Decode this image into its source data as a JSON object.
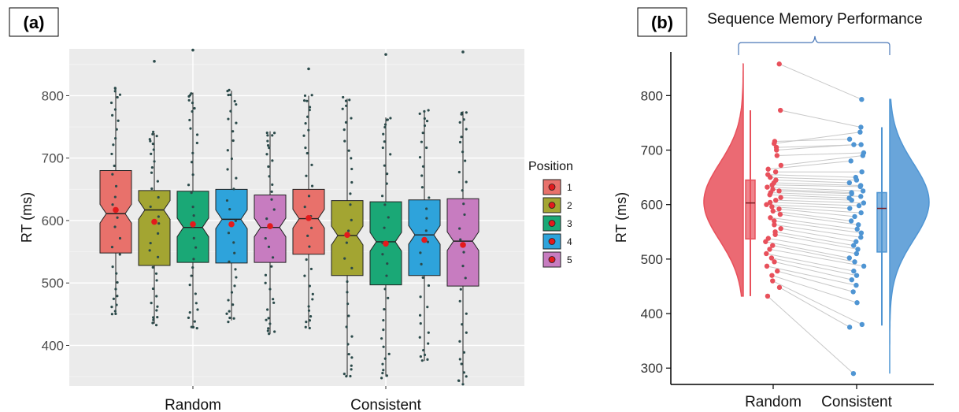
{
  "chart_data": [
    {
      "panel": "(a)",
      "type": "boxplot",
      "ylabel": "RT (ms)",
      "ylim": [
        335,
        875
      ],
      "yticks": [
        400,
        500,
        600,
        700,
        800
      ],
      "grid": true,
      "legend": {
        "title": "Position",
        "placement": "right",
        "entries": [
          "1",
          "2",
          "3",
          "4",
          "5"
        ]
      },
      "colors": [
        "#e8716b",
        "#a3a532",
        "#1aa876",
        "#2ea3db",
        "#c77cc0"
      ],
      "groups": [
        "Random",
        "Consistent"
      ],
      "series": [
        {
          "group": "Random",
          "position": "1",
          "q1": 548,
          "median": 611,
          "q3": 680,
          "whisker_low": 450,
          "whisker_high": 812,
          "mean": 617
        },
        {
          "group": "Random",
          "position": "2",
          "q1": 528,
          "median": 617,
          "q3": 648,
          "whisker_low": 435,
          "whisker_high": 740,
          "mean": 598
        },
        {
          "group": "Random",
          "position": "3",
          "q1": 533,
          "median": 589,
          "q3": 647,
          "whisker_low": 427,
          "whisker_high": 805,
          "mean": 594
        },
        {
          "group": "Random",
          "position": "4",
          "q1": 532,
          "median": 602,
          "q3": 650,
          "whisker_low": 440,
          "whisker_high": 808,
          "mean": 594
        },
        {
          "group": "Random",
          "position": "5",
          "q1": 533,
          "median": 589,
          "q3": 641,
          "whisker_low": 418,
          "whisker_high": 743,
          "mean": 591
        },
        {
          "group": "Consistent",
          "position": "1",
          "q1": 546,
          "median": 603,
          "q3": 650,
          "whisker_low": 430,
          "whisker_high": 800,
          "mean": 604
        },
        {
          "group": "Consistent",
          "position": "2",
          "q1": 512,
          "median": 576,
          "q3": 632,
          "whisker_low": 350,
          "whisker_high": 795,
          "mean": 577
        },
        {
          "group": "Consistent",
          "position": "3",
          "q1": 497,
          "median": 566,
          "q3": 630,
          "whisker_low": 350,
          "whisker_high": 765,
          "mean": 563
        },
        {
          "group": "Consistent",
          "position": "4",
          "q1": 512,
          "median": 577,
          "q3": 633,
          "whisker_low": 375,
          "whisker_high": 775,
          "mean": 569
        },
        {
          "group": "Consistent",
          "position": "5",
          "q1": 495,
          "median": 567,
          "q3": 635,
          "whisker_low": 340,
          "whisker_high": 775,
          "mean": 561
        }
      ],
      "outliers": [
        {
          "group": "Random",
          "position": "2",
          "value": 855
        },
        {
          "group": "Random",
          "position": "3",
          "value": 873
        },
        {
          "group": "Consistent",
          "position": "1",
          "value": 843
        },
        {
          "group": "Consistent",
          "position": "3",
          "value": 866
        },
        {
          "group": "Consistent",
          "position": "5",
          "value": 870
        }
      ]
    },
    {
      "panel": "(b)",
      "type": "raincloud",
      "title": "Sequence Memory Performance",
      "ylabel": "RT (ms)",
      "ylim": [
        270,
        880
      ],
      "yticks": [
        300,
        400,
        500,
        600,
        700,
        800
      ],
      "categories": [
        "Random",
        "Consistent"
      ],
      "colors": [
        "#e8505b",
        "#4f95d3"
      ],
      "boxes": [
        {
          "category": "Random",
          "q1": 537,
          "median": 603,
          "q3": 645,
          "whisker_low": 432,
          "whisker_high": 773
        },
        {
          "category": "Consistent",
          "q1": 513,
          "median": 593,
          "q3": 622,
          "whisker_low": 378,
          "whisker_high": 742
        }
      ],
      "density_range": [
        {
          "category": "Random",
          "min": 432,
          "max": 858,
          "mode": 605
        },
        {
          "category": "Consistent",
          "min": 290,
          "max": 793,
          "mode": 605
        }
      ],
      "paired_points": [
        [
          858,
          793
        ],
        [
          773,
          742
        ],
        [
          712,
          733
        ],
        [
          716,
          720
        ],
        [
          705,
          710
        ],
        [
          700,
          710
        ],
        [
          690,
          695
        ],
        [
          672,
          690
        ],
        [
          665,
          680
        ],
        [
          660,
          660
        ],
        [
          655,
          650
        ],
        [
          650,
          645
        ],
        [
          645,
          640
        ],
        [
          640,
          635
        ],
        [
          636,
          633
        ],
        [
          632,
          625
        ],
        [
          628,
          622
        ],
        [
          625,
          620
        ],
        [
          622,
          615
        ],
        [
          618,
          612
        ],
        [
          613,
          608
        ],
        [
          608,
          603
        ],
        [
          604,
          598
        ],
        [
          600,
          593
        ],
        [
          596,
          585
        ],
        [
          592,
          578
        ],
        [
          588,
          570
        ],
        [
          582,
          563
        ],
        [
          576,
          555
        ],
        [
          570,
          548
        ],
        [
          563,
          540
        ],
        [
          556,
          532
        ],
        [
          550,
          525
        ],
        [
          545,
          518
        ],
        [
          538,
          510
        ],
        [
          532,
          502
        ],
        [
          525,
          495
        ],
        [
          518,
          487
        ],
        [
          510,
          478
        ],
        [
          502,
          470
        ],
        [
          495,
          462
        ],
        [
          487,
          452
        ],
        [
          478,
          440
        ],
        [
          470,
          420
        ],
        [
          460,
          380
        ],
        [
          448,
          375
        ],
        [
          432,
          290
        ]
      ]
    }
  ]
}
